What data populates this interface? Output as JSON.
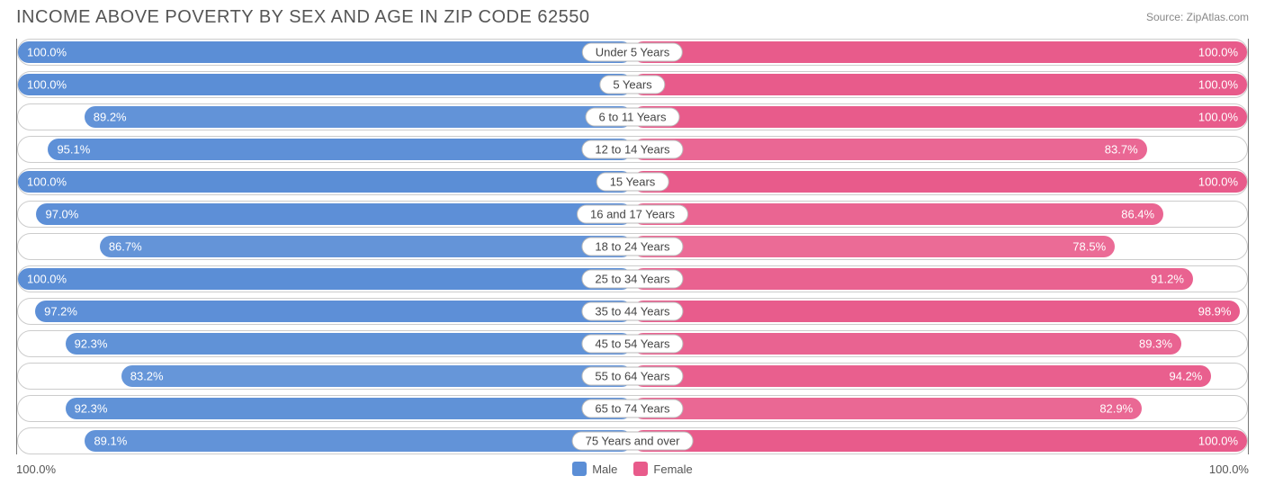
{
  "title": "INCOME ABOVE POVERTY BY SEX AND AGE IN ZIP CODE 62550",
  "source": "Source: ZipAtlas.com",
  "axis_min_label": "100.0%",
  "axis_max_label": "100.0%",
  "legend": {
    "male": "Male",
    "female": "Female"
  },
  "colors": {
    "male_base": "#5b8ed6",
    "male_light": "#9cbce8",
    "female_base": "#e85b8b",
    "female_light": "#f4a6c0",
    "track_border": "#cccccc",
    "axis_line": "#777777",
    "text_on_bar": "#ffffff"
  },
  "chart": {
    "type": "diverging-bar",
    "scale_max": 100.0,
    "rows": [
      {
        "category": "Under 5 Years",
        "male": 100.0,
        "female": 100.0,
        "male_label": "100.0%",
        "female_label": "100.0%"
      },
      {
        "category": "5 Years",
        "male": 100.0,
        "female": 100.0,
        "male_label": "100.0%",
        "female_label": "100.0%"
      },
      {
        "category": "6 to 11 Years",
        "male": 89.2,
        "female": 100.0,
        "male_label": "89.2%",
        "female_label": "100.0%"
      },
      {
        "category": "12 to 14 Years",
        "male": 95.1,
        "female": 83.7,
        "male_label": "95.1%",
        "female_label": "83.7%"
      },
      {
        "category": "15 Years",
        "male": 100.0,
        "female": 100.0,
        "male_label": "100.0%",
        "female_label": "100.0%"
      },
      {
        "category": "16 and 17 Years",
        "male": 97.0,
        "female": 86.4,
        "male_label": "97.0%",
        "female_label": "86.4%"
      },
      {
        "category": "18 to 24 Years",
        "male": 86.7,
        "female": 78.5,
        "male_label": "86.7%",
        "female_label": "78.5%"
      },
      {
        "category": "25 to 34 Years",
        "male": 100.0,
        "female": 91.2,
        "male_label": "100.0%",
        "female_label": "91.2%"
      },
      {
        "category": "35 to 44 Years",
        "male": 97.2,
        "female": 98.9,
        "male_label": "97.2%",
        "female_label": "98.9%"
      },
      {
        "category": "45 to 54 Years",
        "male": 92.3,
        "female": 89.3,
        "male_label": "92.3%",
        "female_label": "89.3%"
      },
      {
        "category": "55 to 64 Years",
        "male": 83.2,
        "female": 94.2,
        "male_label": "83.2%",
        "female_label": "94.2%"
      },
      {
        "category": "65 to 74 Years",
        "male": 92.3,
        "female": 82.9,
        "male_label": "92.3%",
        "female_label": "82.9%"
      },
      {
        "category": "75 Years and over",
        "male": 89.1,
        "female": 100.0,
        "male_label": "89.1%",
        "female_label": "100.0%"
      }
    ]
  }
}
